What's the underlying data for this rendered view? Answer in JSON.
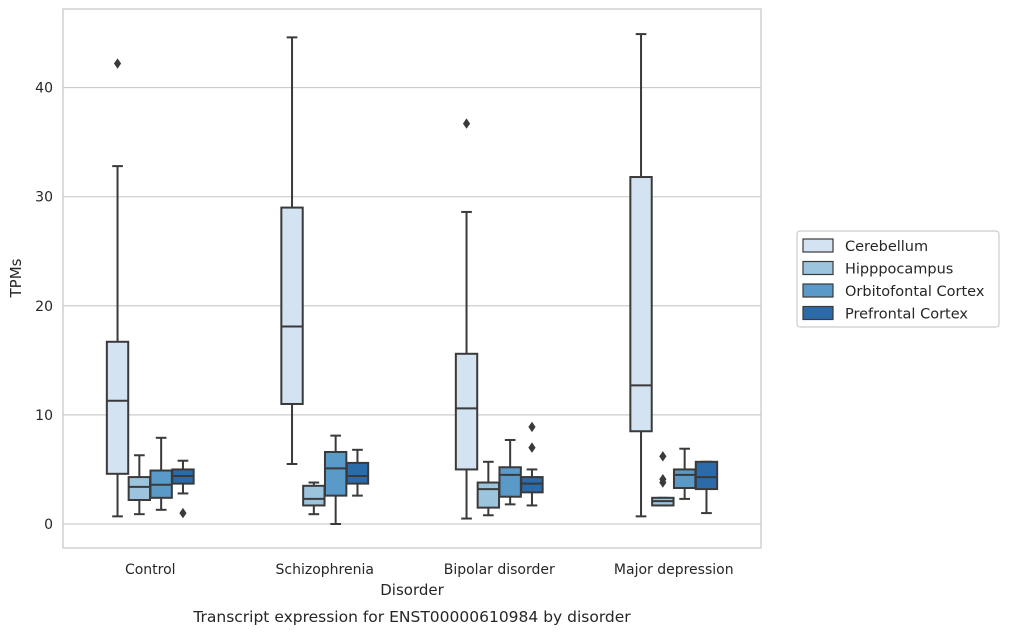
{
  "chart_data": {
    "type": "box",
    "title": "",
    "caption": "Transcript expression for ENST00000610984 by disorder",
    "xlabel": "Disorder",
    "ylabel": "TPMs",
    "ylim": [
      -2.2,
      47.2
    ],
    "yticks": [
      0,
      10,
      20,
      30,
      40
    ],
    "grid": "horizontal",
    "legend_position": "right",
    "categories": [
      "Control",
      "Schizophrenia",
      "Bipolar disorder",
      "Major depression"
    ],
    "series": [
      {
        "name": "Cerebellum",
        "color": "#d4e3f1",
        "boxes": [
          {
            "whisker_low": 0.7,
            "q1": 4.6,
            "median": 11.3,
            "q3": 16.7,
            "whisker_high": 32.8,
            "outliers": [
              42.2
            ]
          },
          {
            "whisker_low": 5.5,
            "q1": 11.0,
            "median": 18.1,
            "q3": 29.0,
            "whisker_high": 44.6,
            "outliers": []
          },
          {
            "whisker_low": 0.5,
            "q1": 5.0,
            "median": 10.6,
            "q3": 15.6,
            "whisker_high": 28.6,
            "outliers": [
              36.7
            ]
          },
          {
            "whisker_low": 0.7,
            "q1": 8.5,
            "median": 12.7,
            "q3": 31.8,
            "whisker_high": 44.9,
            "outliers": []
          }
        ]
      },
      {
        "name": "Hipppocampus",
        "color": "#9dc4dd",
        "boxes": [
          {
            "whisker_low": 0.9,
            "q1": 2.2,
            "median": 3.4,
            "q3": 4.3,
            "whisker_high": 6.3,
            "outliers": []
          },
          {
            "whisker_low": 0.9,
            "q1": 1.7,
            "median": 2.3,
            "q3": 3.5,
            "whisker_high": 3.8,
            "outliers": []
          },
          {
            "whisker_low": 0.8,
            "q1": 1.5,
            "median": 3.2,
            "q3": 3.8,
            "whisker_high": 5.7,
            "outliers": []
          },
          {
            "whisker_low": 1.7,
            "q1": 1.7,
            "median": 2.1,
            "q3": 2.4,
            "whisker_high": 2.4,
            "outliers": [
              3.8,
              4.1,
              6.2
            ]
          }
        ]
      },
      {
        "name": "Orbitofontal Cortex",
        "color": "#5a9ac8",
        "boxes": [
          {
            "whisker_low": 1.3,
            "q1": 2.4,
            "median": 3.6,
            "q3": 4.9,
            "whisker_high": 7.9,
            "outliers": []
          },
          {
            "whisker_low": 0.0,
            "q1": 2.6,
            "median": 5.1,
            "q3": 6.6,
            "whisker_high": 8.1,
            "outliers": []
          },
          {
            "whisker_low": 1.8,
            "q1": 2.5,
            "median": 4.5,
            "q3": 5.2,
            "whisker_high": 7.7,
            "outliers": []
          },
          {
            "whisker_low": 2.3,
            "q1": 3.3,
            "median": 4.5,
            "q3": 5.0,
            "whisker_high": 6.9,
            "outliers": []
          }
        ]
      },
      {
        "name": "Prefrontal Cortex",
        "color": "#2c6ba9",
        "boxes": [
          {
            "whisker_low": 2.8,
            "q1": 3.7,
            "median": 4.4,
            "q3": 5.0,
            "whisker_high": 5.8,
            "outliers": [
              1.0
            ]
          },
          {
            "whisker_low": 2.6,
            "q1": 3.7,
            "median": 4.4,
            "q3": 5.6,
            "whisker_high": 6.8,
            "outliers": []
          },
          {
            "whisker_low": 1.7,
            "q1": 2.9,
            "median": 3.7,
            "q3": 4.3,
            "whisker_high": 5.0,
            "outliers": [
              7.0,
              8.9
            ]
          },
          {
            "whisker_low": 1.0,
            "q1": 3.2,
            "median": 4.3,
            "q3": 5.7,
            "whisker_high": 5.7,
            "outliers": []
          }
        ]
      }
    ]
  }
}
